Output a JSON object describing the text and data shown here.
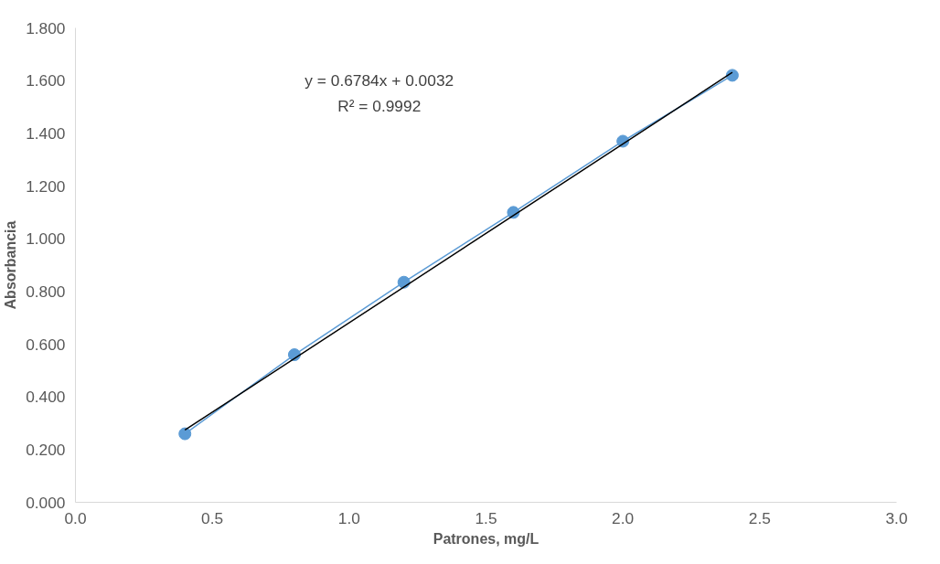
{
  "chart_data": {
    "type": "line",
    "xlabel": "Patrones, mg/L",
    "ylabel": "Absorbancia",
    "x": [
      0.4,
      0.8,
      1.2,
      1.6,
      2.0,
      2.4
    ],
    "series": [
      {
        "color": "#5b9bd5",
        "values": [
          0.26,
          0.56,
          0.835,
          1.1,
          1.37,
          1.62
        ],
        "marker": "circle"
      },
      {
        "type": "line",
        "color": "#000000",
        "x": [
          0.4,
          2.4
        ],
        "values": [
          0.274,
          1.631
        ],
        "marker": "none"
      }
    ],
    "xlim": [
      0,
      3
    ],
    "ylim": [
      0,
      1.8
    ],
    "xticks": [
      {
        "value": 0,
        "label": "0.0"
      },
      {
        "value": 0.5,
        "label": "0.5"
      },
      {
        "value": 1,
        "label": "1.0"
      },
      {
        "value": 1.5,
        "label": "1.5"
      },
      {
        "value": 2,
        "label": "2.0"
      },
      {
        "value": 2.5,
        "label": "2.5"
      },
      {
        "value": 3,
        "label": "3.0"
      }
    ],
    "yticks": [
      {
        "value": 0,
        "label": "0.000"
      },
      {
        "value": 0.2,
        "label": "0.200"
      },
      {
        "value": 0.4,
        "label": "0.400"
      },
      {
        "value": 0.6,
        "label": "0.600"
      },
      {
        "value": 0.8,
        "label": "0.800"
      },
      {
        "value": 1.0,
        "label": "1.000"
      },
      {
        "value": 1.2,
        "label": "1.200"
      },
      {
        "value": 1.4,
        "label": "1.400"
      },
      {
        "value": 1.6,
        "label": "1.600"
      },
      {
        "value": 1.8,
        "label": "1.800"
      }
    ],
    "annotations": [
      "y = 0.6784x + 0.0032",
      "R² = 0.9992"
    ]
  }
}
